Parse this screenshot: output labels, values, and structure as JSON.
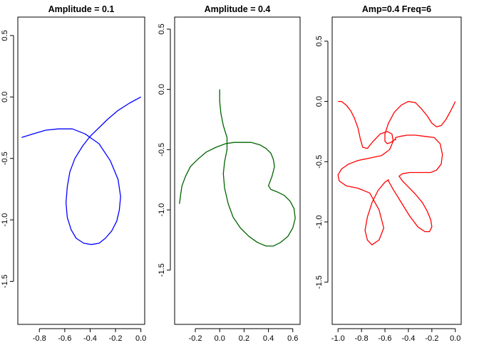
{
  "chart_data": [
    {
      "type": "line",
      "title": "Amplitude = 0.1",
      "xlabel": "",
      "ylabel": "",
      "xlim": [
        -0.97,
        0.03
      ],
      "ylim": [
        -1.85,
        0.65
      ],
      "xticks": [
        -0.8,
        -0.6,
        -0.4,
        -0.2,
        0.0
      ],
      "xtick_labels": [
        "-0.8",
        "-0.6",
        "-0.4",
        "-0.2",
        "0.0"
      ],
      "yticks": [
        -1.5,
        -1.0,
        -0.5,
        0.0,
        0.5
      ],
      "ytick_labels": [
        "-1.5",
        "-1.0",
        "-0.5",
        "0.0",
        "0.5"
      ],
      "grid": false,
      "series": [
        {
          "color": "#0000ff",
          "x": [
            0.0,
            -0.09,
            -0.18,
            -0.26,
            -0.33,
            -0.4,
            -0.46,
            -0.52,
            -0.56,
            -0.58,
            -0.59,
            -0.58,
            -0.55,
            -0.51,
            -0.45,
            -0.39,
            -0.33,
            -0.28,
            -0.23,
            -0.19,
            -0.17,
            -0.16,
            -0.18,
            -0.24,
            -0.33,
            -0.44,
            -0.54,
            -0.65,
            -0.75,
            -0.85,
            -0.94
          ],
          "y": [
            0.0,
            -0.05,
            -0.11,
            -0.18,
            -0.25,
            -0.32,
            -0.4,
            -0.5,
            -0.61,
            -0.73,
            -0.86,
            -0.98,
            -1.08,
            -1.15,
            -1.19,
            -1.2,
            -1.19,
            -1.15,
            -1.09,
            -1.01,
            -0.92,
            -0.81,
            -0.67,
            -0.52,
            -0.38,
            -0.3,
            -0.26,
            -0.26,
            -0.27,
            -0.3,
            -0.33
          ]
        }
      ]
    },
    {
      "type": "line",
      "title": "Amplitude = 0.4",
      "xlabel": "",
      "ylabel": "",
      "xlim": [
        -0.37,
        0.66
      ],
      "ylim": [
        -1.95,
        0.6
      ],
      "xticks": [
        -0.2,
        0.0,
        0.2,
        0.4,
        0.6
      ],
      "xtick_labels": [
        "-0.2",
        "0.0",
        "0.2",
        "0.4",
        "0.6"
      ],
      "yticks": [
        -1.5,
        -1.0,
        -0.5,
        0.0,
        0.5
      ],
      "ytick_labels": [
        "-1.5",
        "-1.0",
        "-0.5",
        "0.0",
        "0.5"
      ],
      "grid": false,
      "series": [
        {
          "color": "#006400",
          "x": [
            0.0,
            0.0,
            0.01,
            0.03,
            0.06,
            0.06,
            0.04,
            0.03,
            0.04,
            0.07,
            0.11,
            0.17,
            0.24,
            0.31,
            0.38,
            0.44,
            0.5,
            0.56,
            0.6,
            0.62,
            0.61,
            0.58,
            0.53,
            0.47,
            0.42,
            0.4,
            0.43,
            0.45,
            0.44,
            0.42,
            0.38,
            0.33,
            0.26,
            0.19,
            0.12,
            0.05,
            -0.03,
            -0.11,
            -0.18,
            -0.24,
            -0.28,
            -0.31,
            -0.32,
            -0.33
          ],
          "y": [
            0.0,
            -0.1,
            -0.2,
            -0.3,
            -0.4,
            -0.5,
            -0.6,
            -0.7,
            -0.82,
            -0.95,
            -1.06,
            -1.15,
            -1.22,
            -1.27,
            -1.3,
            -1.3,
            -1.27,
            -1.22,
            -1.15,
            -1.07,
            -0.99,
            -0.93,
            -0.88,
            -0.85,
            -0.83,
            -0.8,
            -0.72,
            -0.64,
            -0.58,
            -0.53,
            -0.49,
            -0.46,
            -0.44,
            -0.44,
            -0.44,
            -0.45,
            -0.48,
            -0.52,
            -0.58,
            -0.64,
            -0.72,
            -0.8,
            -0.87,
            -0.95
          ]
        }
      ]
    },
    {
      "type": "line",
      "title": "Amp=0.4 Freq=6",
      "xlabel": "",
      "ylabel": "",
      "xlim": [
        -1.05,
        0.05
      ],
      "ylim": [
        -1.85,
        0.7
      ],
      "xticks": [
        -1.0,
        -0.8,
        -0.6,
        -0.4,
        -0.2,
        0.0
      ],
      "xtick_labels": [
        "-1.0",
        "-0.8",
        "-0.6",
        "-0.4",
        "-0.2",
        "0.0"
      ],
      "yticks": [
        -1.5,
        -1.0,
        -0.5,
        0.0,
        0.5
      ],
      "ytick_labels": [
        "-1.5",
        "-1.0",
        "-0.5",
        "0.0",
        "0.5"
      ],
      "grid": false,
      "series": [
        {
          "color": "#ff0000",
          "x": [
            0.0,
            -0.04,
            -0.08,
            -0.12,
            -0.16,
            -0.2,
            -0.24,
            -0.29,
            -0.34,
            -0.4,
            -0.46,
            -0.52,
            -0.57,
            -0.6,
            -0.6,
            -0.58,
            -0.55,
            -0.52,
            -0.51,
            -0.51,
            -0.51,
            -0.47,
            -0.41,
            -0.34,
            -0.26,
            -0.18,
            -0.13,
            -0.11,
            -0.12,
            -0.16,
            -0.21,
            -0.26,
            -0.32,
            -0.39,
            -0.45,
            -0.48,
            -0.45,
            -0.4,
            -0.34,
            -0.28,
            -0.24,
            -0.21,
            -0.2,
            -0.22,
            -0.26,
            -0.32,
            -0.39,
            -0.46,
            -0.53,
            -0.57,
            -0.57,
            -0.57,
            -0.6,
            -0.66,
            -0.71,
            -0.75,
            -0.77,
            -0.75,
            -0.71,
            -0.65,
            -0.61,
            -0.65,
            -0.73,
            -0.83,
            -0.93,
            -0.99,
            -1.0,
            -0.97,
            -0.91,
            -0.83,
            -0.73,
            -0.63,
            -0.56,
            -0.53,
            -0.54,
            -0.58,
            -0.64,
            -0.7,
            -0.75,
            -0.79,
            -0.81,
            -0.83,
            -0.86,
            -0.89,
            -0.93,
            -0.97,
            -1.0
          ],
          "y": [
            0.0,
            -0.08,
            -0.15,
            -0.2,
            -0.21,
            -0.18,
            -0.12,
            -0.06,
            -0.01,
            0.0,
            -0.03,
            -0.09,
            -0.18,
            -0.27,
            -0.33,
            -0.35,
            -0.34,
            -0.32,
            -0.31,
            -0.32,
            -0.3,
            -0.29,
            -0.28,
            -0.28,
            -0.29,
            -0.3,
            -0.35,
            -0.44,
            -0.52,
            -0.57,
            -0.59,
            -0.59,
            -0.59,
            -0.59,
            -0.6,
            -0.62,
            -0.66,
            -0.71,
            -0.77,
            -0.84,
            -0.91,
            -0.98,
            -1.04,
            -1.08,
            -1.08,
            -1.04,
            -0.95,
            -0.84,
            -0.73,
            -0.66,
            -0.65,
            -0.65,
            -0.67,
            -0.74,
            -0.84,
            -0.96,
            -1.07,
            -1.15,
            -1.19,
            -1.15,
            -1.05,
            -0.9,
            -0.76,
            -0.72,
            -0.7,
            -0.66,
            -0.61,
            -0.56,
            -0.52,
            -0.49,
            -0.47,
            -0.45,
            -0.4,
            -0.33,
            -0.27,
            -0.25,
            -0.27,
            -0.33,
            -0.39,
            -0.38,
            -0.31,
            -0.22,
            -0.14,
            -0.08,
            -0.03,
            0.0,
            0.0
          ]
        }
      ]
    }
  ]
}
